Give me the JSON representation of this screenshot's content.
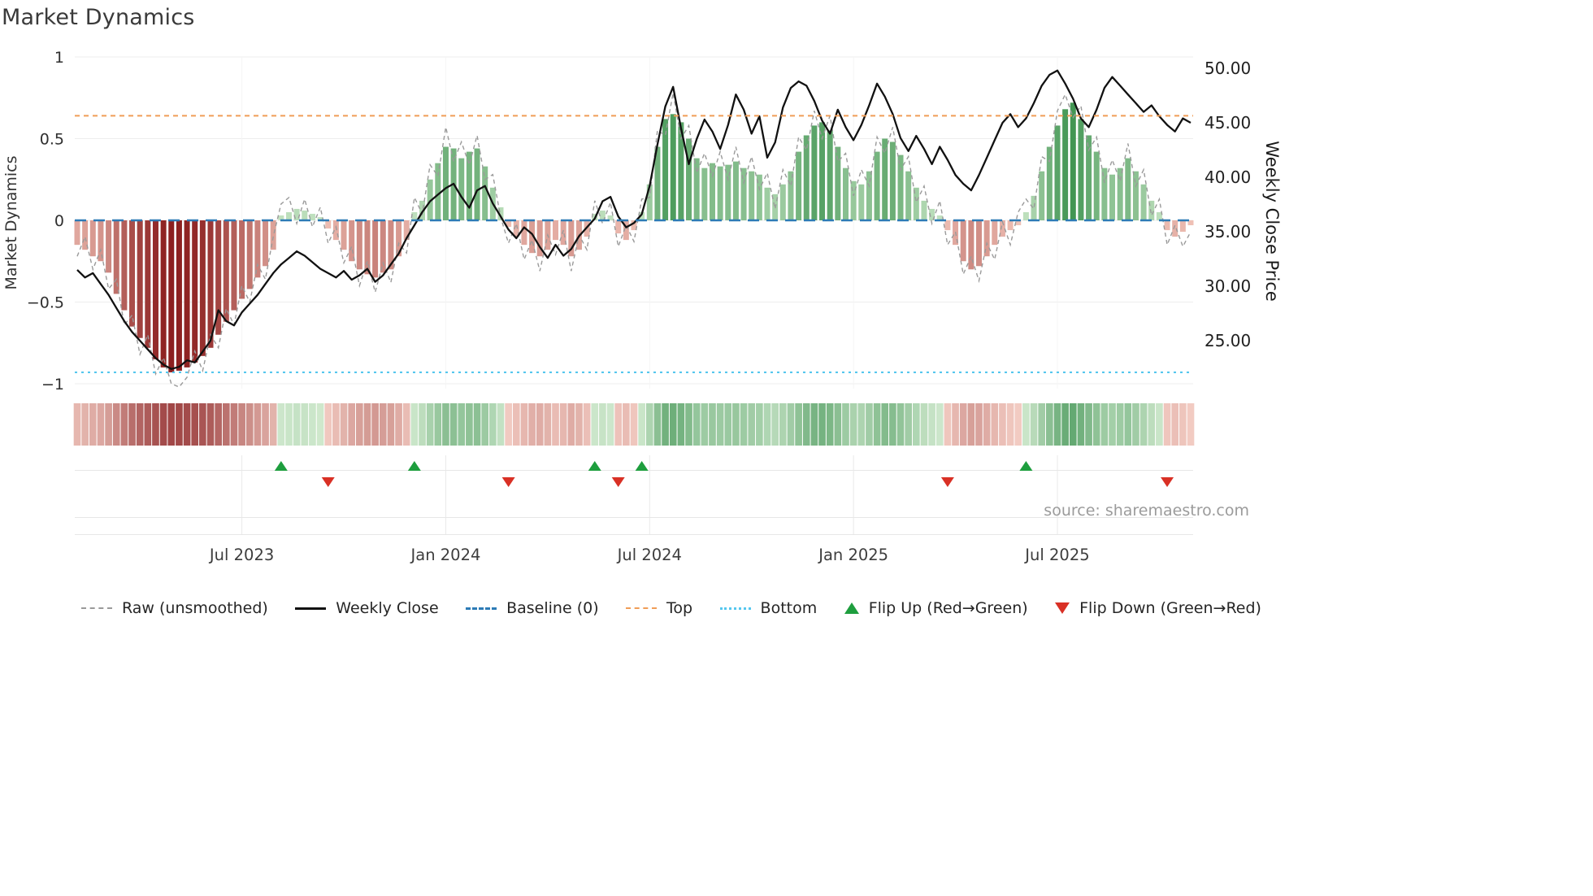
{
  "title": "Market Dynamics",
  "source": "source: sharemaestro.com",
  "colors": {
    "raw_line": "#9a9a9a",
    "close_line": "#111111",
    "baseline": "#2d7bb6",
    "top_line": "#f09d57",
    "bottom_line": "#56c7ee",
    "flip_up": "#1e9e3e",
    "flip_down": "#d93025",
    "neg_light": "#f4c8bc",
    "neg_deep": "#851414",
    "pos_light": "#c9e6c6",
    "pos_deep": "#147a2c",
    "grid": "#ededed",
    "tick_text": "#2f2f2f"
  },
  "chart_data": {
    "type": "bar",
    "title": "Market Dynamics",
    "left_axis": {
      "label": "Market Dynamics",
      "tick_labels": [
        "1",
        "0.5",
        "0",
        "−0.5",
        "−1"
      ],
      "tick_values": [
        1,
        0.5,
        0,
        -0.5,
        -1
      ],
      "range": [
        -1,
        1
      ]
    },
    "right_axis": {
      "label": "Weekly Close Price",
      "tick_labels": [
        "50.00",
        "45.00",
        "40.00",
        "35.00",
        "30.00",
        "25.00"
      ],
      "tick_values": [
        50,
        45,
        40,
        35,
        30,
        25
      ],
      "range": [
        22,
        50.5
      ]
    },
    "x_tick_labels": [
      "Jul 2023",
      "Jan 2024",
      "Jul 2024",
      "Jan 2025",
      "Jul 2025"
    ],
    "x_tick_weeks": [
      21,
      47,
      73,
      99,
      125
    ],
    "baseline": 0,
    "top_level": 0.64,
    "bottom_level": -0.93,
    "flip_up_weeks": [
      26,
      43,
      66,
      72,
      121
    ],
    "flip_down_weeks": [
      32,
      55,
      69,
      111,
      139
    ],
    "oscillator": [
      -0.15,
      -0.18,
      -0.22,
      -0.25,
      -0.32,
      -0.45,
      -0.55,
      -0.65,
      -0.72,
      -0.78,
      -0.85,
      -0.9,
      -0.93,
      -0.92,
      -0.9,
      -0.87,
      -0.83,
      -0.78,
      -0.7,
      -0.62,
      -0.55,
      -0.48,
      -0.42,
      -0.35,
      -0.28,
      -0.18,
      0.03,
      0.05,
      0.07,
      0.06,
      0.04,
      0.02,
      -0.05,
      -0.12,
      -0.18,
      -0.25,
      -0.3,
      -0.33,
      -0.35,
      -0.32,
      -0.3,
      -0.22,
      -0.12,
      0.05,
      0.12,
      0.25,
      0.35,
      0.45,
      0.44,
      0.38,
      0.42,
      0.44,
      0.33,
      0.2,
      0.08,
      -0.04,
      -0.1,
      -0.15,
      -0.2,
      -0.22,
      -0.18,
      -0.12,
      -0.15,
      -0.22,
      -0.18,
      -0.1,
      0.04,
      0.06,
      0.03,
      -0.08,
      -0.12,
      -0.06,
      0.05,
      0.22,
      0.45,
      0.62,
      0.65,
      0.6,
      0.5,
      0.38,
      0.32,
      0.35,
      0.33,
      0.34,
      0.36,
      0.32,
      0.3,
      0.28,
      0.2,
      0.16,
      0.22,
      0.3,
      0.42,
      0.52,
      0.58,
      0.6,
      0.55,
      0.45,
      0.32,
      0.24,
      0.22,
      0.3,
      0.42,
      0.5,
      0.48,
      0.4,
      0.3,
      0.2,
      0.12,
      0.07,
      0.03,
      -0.06,
      -0.15,
      -0.25,
      -0.3,
      -0.28,
      -0.22,
      -0.15,
      -0.1,
      -0.06,
      -0.03,
      0.05,
      0.15,
      0.3,
      0.45,
      0.58,
      0.68,
      0.72,
      0.62,
      0.52,
      0.42,
      0.32,
      0.28,
      0.32,
      0.38,
      0.3,
      0.22,
      0.12,
      0.05,
      -0.06,
      -0.1,
      -0.07,
      -0.03
    ],
    "raw": [
      -0.22,
      -0.1,
      -0.3,
      -0.18,
      -0.42,
      -0.36,
      -0.64,
      -0.58,
      -0.82,
      -0.7,
      -0.94,
      -0.84,
      -1.0,
      -1.02,
      -0.96,
      -0.8,
      -0.92,
      -0.7,
      -0.78,
      -0.54,
      -0.64,
      -0.4,
      -0.5,
      -0.27,
      -0.36,
      -0.1,
      0.1,
      0.14,
      -0.02,
      0.13,
      -0.04,
      0.08,
      -0.14,
      -0.04,
      -0.26,
      -0.16,
      -0.4,
      -0.25,
      -0.44,
      -0.26,
      -0.38,
      -0.14,
      -0.2,
      0.14,
      0.04,
      0.34,
      0.27,
      0.57,
      0.36,
      0.48,
      0.34,
      0.52,
      0.25,
      0.28,
      0.02,
      -0.14,
      -0.02,
      -0.24,
      -0.12,
      -0.31,
      -0.09,
      -0.21,
      -0.06,
      -0.31,
      -0.09,
      -0.18,
      0.12,
      -0.02,
      0.11,
      -0.16,
      -0.03,
      -0.13,
      0.13,
      0.14,
      0.55,
      0.52,
      0.78,
      0.5,
      0.58,
      0.29,
      0.41,
      0.27,
      0.42,
      0.25,
      0.45,
      0.23,
      0.39,
      0.19,
      0.29,
      0.07,
      0.31,
      0.21,
      0.51,
      0.43,
      0.67,
      0.5,
      0.64,
      0.36,
      0.41,
      0.15,
      0.31,
      0.21,
      0.51,
      0.41,
      0.57,
      0.31,
      0.39,
      0.11,
      0.21,
      -0.02,
      0.12,
      -0.15,
      -0.07,
      -0.33,
      -0.22,
      -0.37,
      -0.14,
      -0.24,
      -0.01,
      -0.15,
      0.05,
      0.13,
      0.07,
      0.39,
      0.36,
      0.67,
      0.77,
      0.63,
      0.7,
      0.43,
      0.51,
      0.23,
      0.37,
      0.24,
      0.47,
      0.21,
      0.31,
      0.03,
      0.13,
      -0.15,
      -0.03,
      -0.16,
      -0.07
    ],
    "weekly_close": [
      31.5,
      30.8,
      31.2,
      30.2,
      29.2,
      28.0,
      26.8,
      25.8,
      25.0,
      24.2,
      23.4,
      22.8,
      22.4,
      22.6,
      23.2,
      23.0,
      24.0,
      25.0,
      27.8,
      26.8,
      26.4,
      27.6,
      28.4,
      29.2,
      30.2,
      31.2,
      32.0,
      32.6,
      33.2,
      32.8,
      32.2,
      31.6,
      31.2,
      30.8,
      31.4,
      30.6,
      31.0,
      31.6,
      30.4,
      31.0,
      32.0,
      33.0,
      34.4,
      35.6,
      36.8,
      37.8,
      38.4,
      39.0,
      39.4,
      38.2,
      37.2,
      38.8,
      39.2,
      37.6,
      36.4,
      35.2,
      34.4,
      35.4,
      34.8,
      33.6,
      32.6,
      33.8,
      32.8,
      33.4,
      34.6,
      35.4,
      36.2,
      37.8,
      38.2,
      36.4,
      35.4,
      35.8,
      36.6,
      39.2,
      43.0,
      46.5,
      48.3,
      44.5,
      41.2,
      43.5,
      45.3,
      44.2,
      42.6,
      44.8,
      47.6,
      46.2,
      44.0,
      45.6,
      41.8,
      43.2,
      46.4,
      48.2,
      48.8,
      48.4,
      47.0,
      45.2,
      44.0,
      46.2,
      44.6,
      43.4,
      44.8,
      46.6,
      48.6,
      47.4,
      45.8,
      43.6,
      42.4,
      43.8,
      42.6,
      41.2,
      42.8,
      41.6,
      40.2,
      39.4,
      38.8,
      40.2,
      41.8,
      43.4,
      45.0,
      45.8,
      44.6,
      45.4,
      46.8,
      48.4,
      49.4,
      49.8,
      48.6,
      47.2,
      45.4,
      44.6,
      46.2,
      48.2,
      49.2,
      48.4,
      47.6,
      46.8,
      46.0,
      46.6,
      45.6,
      44.8,
      44.2,
      45.4,
      45.0
    ]
  },
  "legend": {
    "items": [
      {
        "label": "Raw (unsmoothed)"
      },
      {
        "label": "Weekly Close"
      },
      {
        "label": "Baseline (0)"
      },
      {
        "label": "Top"
      },
      {
        "label": "Bottom"
      },
      {
        "label": "Flip Up (Red→Green)"
      },
      {
        "label": "Flip Down (Green→Red)"
      }
    ]
  }
}
